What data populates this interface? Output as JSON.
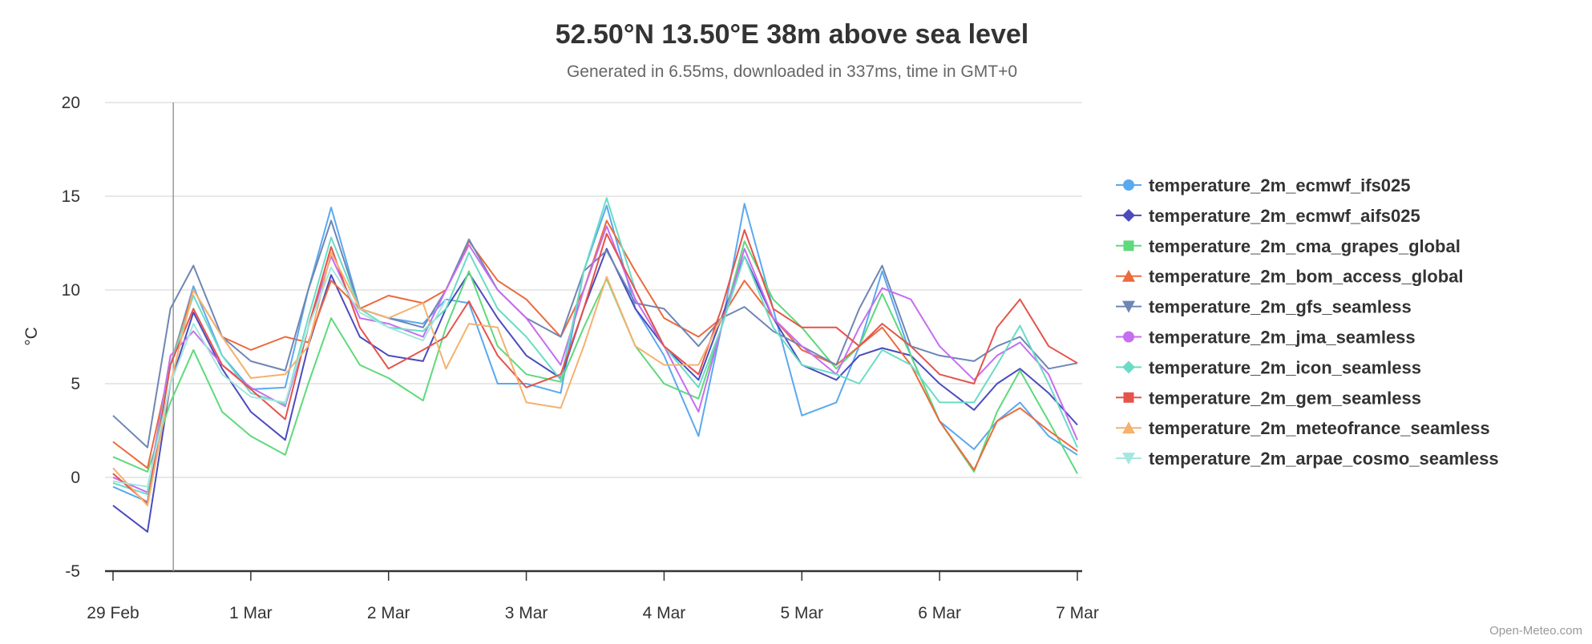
{
  "chart_data": {
    "type": "line",
    "title": "52.50°N 13.50°E 38m above sea level",
    "subtitle": "Generated in 6.55ms, downloaded in 337ms, time in GMT+0",
    "ylabel": "°C",
    "xlabel": "",
    "ylim": [
      -5,
      20
    ],
    "yticks": [
      "20",
      "15",
      "10",
      "5",
      "0",
      "-5"
    ],
    "xticks": [
      "29 Feb",
      "1 Mar",
      "2 Mar",
      "3 Mar",
      "4 Mar",
      "5 Mar",
      "6 Mar",
      "7 Mar"
    ],
    "grid": true,
    "legend_position": "right",
    "current_time_marker": "29 Feb 10:30",
    "credit": "Open-Meteo.com",
    "x": [
      "29 Feb 00:00",
      "29 Feb 06:00",
      "29 Feb 10:00",
      "29 Feb 14:00",
      "29 Feb 19:00",
      "1 Mar 00:00",
      "1 Mar 06:00",
      "1 Mar 10:00",
      "1 Mar 14:00",
      "1 Mar 19:00",
      "2 Mar 00:00",
      "2 Mar 06:00",
      "2 Mar 10:00",
      "2 Mar 14:00",
      "2 Mar 19:00",
      "3 Mar 00:00",
      "3 Mar 06:00",
      "3 Mar 10:00",
      "3 Mar 14:00",
      "3 Mar 19:00",
      "4 Mar 00:00",
      "4 Mar 06:00",
      "4 Mar 10:00",
      "4 Mar 14:00",
      "4 Mar 19:00",
      "5 Mar 00:00",
      "5 Mar 06:00",
      "5 Mar 10:00",
      "5 Mar 14:00",
      "5 Mar 19:00",
      "6 Mar 00:00",
      "6 Mar 06:00",
      "6 Mar 10:00",
      "6 Mar 14:00",
      "6 Mar 19:00",
      "7 Mar 00:00"
    ],
    "series": [
      {
        "name": "temperature_2m_ecmwf_ifs025",
        "color": "#5aa9f0",
        "marker": "circle",
        "values": [
          -0.5,
          -1.3,
          6,
          10.2,
          6.5,
          4.7,
          4.8,
          10,
          14.4,
          9,
          8.5,
          8.2,
          9.5,
          9.3,
          5,
          5,
          4.5,
          11,
          14.5,
          9,
          6.5,
          2.2,
          8,
          14.6,
          9,
          3.3,
          4,
          7,
          11,
          6.5,
          3,
          1.5,
          3,
          4,
          2.2,
          1.2
        ]
      },
      {
        "name": "temperature_2m_ecmwf_aifs025",
        "color": "#4b4bbf",
        "marker": "diamond",
        "values": [
          -1.5,
          -2.9,
          5,
          8.8,
          5.8,
          3.5,
          2,
          7,
          10.8,
          7.5,
          6.5,
          6.2,
          9,
          10.9,
          8.5,
          6.5,
          5.3,
          9,
          12.2,
          9,
          7,
          5.2,
          8.5,
          11.8,
          8.5,
          6,
          5.2,
          6.5,
          6.9,
          6.5,
          5,
          3.6,
          5,
          5.8,
          4.5,
          2.8
        ]
      },
      {
        "name": "temperature_2m_cma_grapes_global",
        "color": "#5ed97b",
        "marker": "square",
        "values": [
          1.1,
          0.3,
          4,
          6.8,
          3.5,
          2.2,
          1.2,
          5,
          8.5,
          6,
          5.3,
          4.1,
          8,
          11,
          7,
          5.5,
          5.1,
          8,
          10.6,
          7,
          5,
          4.2,
          8,
          12.6,
          9.5,
          8,
          5.8,
          7,
          9.8,
          6.5,
          3,
          0.3,
          3.5,
          5.7,
          3,
          0.2
        ]
      },
      {
        "name": "temperature_2m_bom_access_global",
        "color": "#ec6a3c",
        "marker": "triangle",
        "values": [
          1.9,
          0.5,
          6,
          10,
          7.5,
          6.8,
          7.5,
          7.2,
          10.5,
          9,
          9.7,
          9.3,
          10,
          12.6,
          10.5,
          9.5,
          7.5,
          10,
          13.7,
          11,
          8.5,
          7.5,
          8.5,
          10.5,
          8.5,
          6.8,
          6,
          7,
          8,
          6,
          3,
          0.4,
          3,
          3.7,
          2.5,
          1.4
        ]
      },
      {
        "name": "temperature_2m_gfs_seamless",
        "color": "#6e86b5",
        "marker": "triangle-down",
        "values": [
          3.3,
          1.6,
          9,
          11.3,
          7.5,
          6.2,
          5.7,
          10,
          13.7,
          9,
          8.5,
          8,
          10,
          12.7,
          10,
          8.5,
          7.5,
          11,
          12.1,
          9.3,
          9,
          7,
          8.5,
          9.1,
          7.8,
          7,
          6,
          9,
          11.3,
          7,
          6.5,
          6.2,
          7,
          7.5,
          5.8,
          6.1
        ]
      },
      {
        "name": "temperature_2m_jma_seamless",
        "color": "#c66ef0",
        "marker": "circle",
        "values": [
          0,
          -0.8,
          6.5,
          7.8,
          6,
          4.8,
          3.8,
          8,
          11.8,
          8.5,
          8.2,
          7.5,
          10,
          12.4,
          10,
          8.5,
          6,
          10,
          13.4,
          9.5,
          7,
          3.5,
          8,
          12.2,
          8.5,
          7,
          5.5,
          8,
          10.1,
          9.5,
          7,
          5.2,
          6.5,
          7.2,
          5.5,
          2
        ]
      },
      {
        "name": "temperature_2m_icon_seamless",
        "color": "#6adcc5",
        "marker": "diamond",
        "values": [
          -0.3,
          -0.9,
          6,
          9.7,
          6.5,
          4.5,
          3.9,
          8.5,
          12.8,
          9,
          8,
          7.8,
          9,
          12,
          9,
          7.5,
          5.2,
          11,
          14.9,
          10,
          7,
          4.8,
          8,
          11.8,
          8,
          6,
          5.5,
          5,
          6.8,
          6,
          4,
          4,
          6,
          8.1,
          5,
          1.6
        ]
      },
      {
        "name": "temperature_2m_gem_seamless",
        "color": "#e5534b",
        "marker": "square",
        "values": [
          0.2,
          -1.4,
          6,
          9,
          6,
          4.7,
          3.1,
          8,
          12.3,
          8,
          5.8,
          6.8,
          7.5,
          9.4,
          6.5,
          4.8,
          5.5,
          9,
          13,
          10,
          7,
          5.5,
          9,
          13.2,
          9,
          8,
          8,
          7,
          8.2,
          7,
          5.5,
          5,
          8,
          9.5,
          7,
          6.1
        ]
      },
      {
        "name": "temperature_2m_meteofrance_seamless",
        "color": "#f5b16e",
        "marker": "triangle",
        "values": [
          0.5,
          -1.5,
          5,
          10,
          7.5,
          5.3,
          5.5,
          7,
          12,
          9,
          8.5,
          9.3,
          5.8,
          8.2,
          8,
          4,
          3.7,
          7,
          10.7,
          7,
          6,
          6,
          8.5,
          null,
          null,
          null,
          null,
          null,
          null,
          null,
          null,
          null,
          null,
          null,
          null,
          null
        ]
      },
      {
        "name": "temperature_2m_arpae_cosmo_seamless",
        "color": "#a5e6e0",
        "marker": "triangle-down",
        "values": [
          -0.2,
          -0.5,
          5,
          8.2,
          5.5,
          4.3,
          4,
          8,
          11.2,
          8.8,
          8,
          7.3,
          9.5,
          null,
          null,
          null,
          null,
          null,
          null,
          null,
          null,
          null,
          null,
          null,
          null,
          null,
          null,
          null,
          null,
          null,
          null,
          null,
          null,
          null,
          null,
          null
        ]
      }
    ]
  }
}
